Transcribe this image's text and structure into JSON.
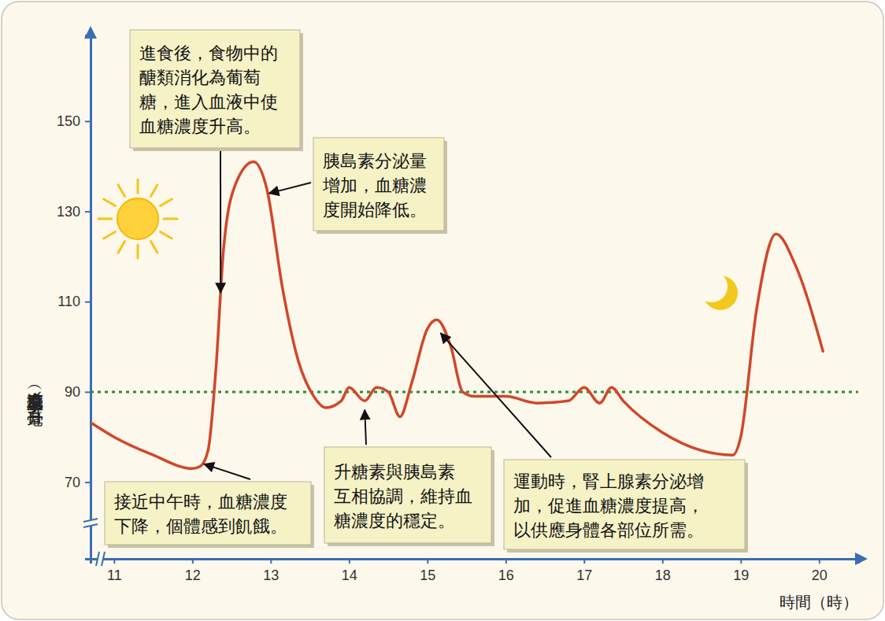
{
  "chart_data": {
    "type": "line",
    "x_label": "時間（時）",
    "y_label": "血糖濃度（毫克／百毫升）",
    "x": [
      10.72,
      11,
      11.5,
      12,
      12.1,
      12.2,
      12.3,
      12.4,
      12.55,
      12.78,
      12.95,
      13.15,
      13.35,
      13.55,
      13.7,
      13.9,
      14,
      14.2,
      14.35,
      14.5,
      14.65,
      14.8,
      15,
      15.12,
      15.3,
      15.45,
      15.6,
      16,
      16.4,
      16.8,
      17,
      17.2,
      17.35,
      17.5,
      18,
      18.5,
      18.9,
      19,
      19.2,
      19.45,
      19.7,
      20.05
    ],
    "values": [
      83,
      80,
      76,
      73,
      73.5,
      77,
      95,
      122,
      136,
      141,
      135,
      113,
      97,
      89,
      86.5,
      88,
      91,
      88,
      91,
      90,
      84.5,
      92,
      104,
      106,
      100,
      90,
      89,
      89,
      87.5,
      88,
      91,
      87.5,
      91,
      88,
      81,
      77,
      76,
      80,
      108,
      125,
      118,
      99
    ],
    "color": "#d2462a",
    "xlim": [
      10.7,
      20.5
    ],
    "ylim": [
      53,
      169
    ],
    "xticks": [
      11,
      12,
      13,
      14,
      15,
      16,
      17,
      18,
      19,
      20
    ],
    "yticks": [
      70,
      90,
      110,
      130,
      150
    ],
    "grid": false,
    "reference_line": {
      "value": 90,
      "color": "#2e8b3a",
      "line_style": "dotted"
    },
    "annotations": [
      {
        "lines": [
          "進食後，食物中的",
          "醣類消化為葡萄",
          "糖，進入血液中使",
          "血糖濃度升高。"
        ],
        "at": {
          "x": 12.36,
          "y": 112
        }
      },
      {
        "lines": [
          "胰島素分泌量",
          "增加，血糖濃",
          "度開始降低。"
        ],
        "at": {
          "x": 12.98,
          "y": 134
        }
      },
      {
        "lines": [
          "接近中午時，血糖濃度",
          "下降，個體感到飢餓。"
        ],
        "at": {
          "x": 12.15,
          "y": 74
        }
      },
      {
        "lines": [
          "升糖素與胰島素",
          "互相協調，維持血",
          "糖濃度的穩定。"
        ],
        "at": {
          "x": 14.2,
          "y": 86
        }
      },
      {
        "lines": [
          "運動時，腎上腺素分泌增",
          "加，促進血糖濃度提高，",
          "以供應身體各部位所需。"
        ],
        "at": {
          "x": 15.17,
          "y": 103
        }
      }
    ]
  }
}
